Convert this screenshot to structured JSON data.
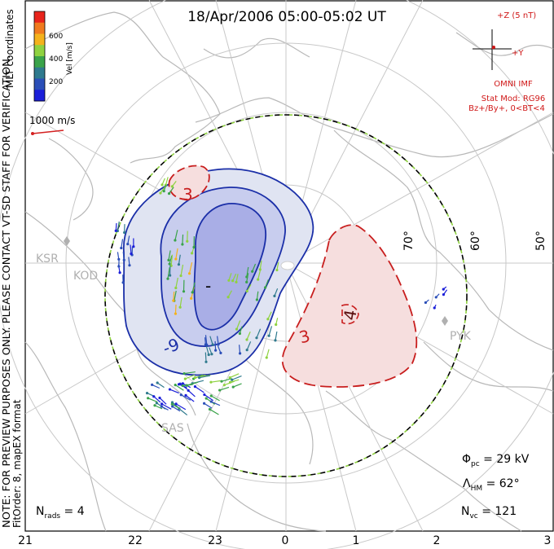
{
  "title": "18/Apr/2006 05:00-05:02 UT",
  "coords_label": "MLT coordinates",
  "colorbar": {
    "label": "Vel [m/s]",
    "ticks": [
      "600",
      "400",
      "200"
    ],
    "colors": [
      "#e8241c",
      "#f07a1e",
      "#f4b21c",
      "#8fd240",
      "#3aa34a",
      "#2f7a8e",
      "#2b4fb8",
      "#1b1fd9"
    ]
  },
  "scale_vector": {
    "label": "1000 m/s",
    "color": "#d42020"
  },
  "imf": {
    "z_label": "+Z (5 nT)",
    "y_label": "+Y",
    "source": "OMNI IMF",
    "model": "Stat Mod: RG96",
    "condition": "Bz+/By+, 0<BT<4",
    "color": "#d01818"
  },
  "latitude_labels": [
    "70°",
    "60°",
    "50°"
  ],
  "mlt_labels": [
    "21",
    "22",
    "23",
    "0",
    "1",
    "2",
    "3"
  ],
  "stations": [
    "KSR",
    "KOD",
    "PYK",
    "SAS"
  ],
  "contours": {
    "negative_labels": [
      "-9",
      "-"
    ],
    "positive_labels": [
      "3",
      "3",
      "4"
    ],
    "negative_color": "#1b2fa8",
    "positive_color": "#c81e1e"
  },
  "note_line1": "NOTE: FOR PREVIEW PURPOSES ONLY. PLEASE CONTACT VT-SD STAFF FOR VERIFICATION.",
  "note_line2": "FitOrder: 8, mapEX format",
  "stats": {
    "phi_symbol": "Φ",
    "phi_sub": "pc",
    "phi_value": " = 29 kV",
    "lambda_symbol": "Λ",
    "lambda_sub": "HM",
    "lambda_value": " = 62°",
    "nvc_symbol": "N",
    "nvc_sub": "vc",
    "nvc_value": " = 121",
    "nrads_symbol": "N",
    "nrads_sub": "rads",
    "nrads_value": " = 4"
  }
}
